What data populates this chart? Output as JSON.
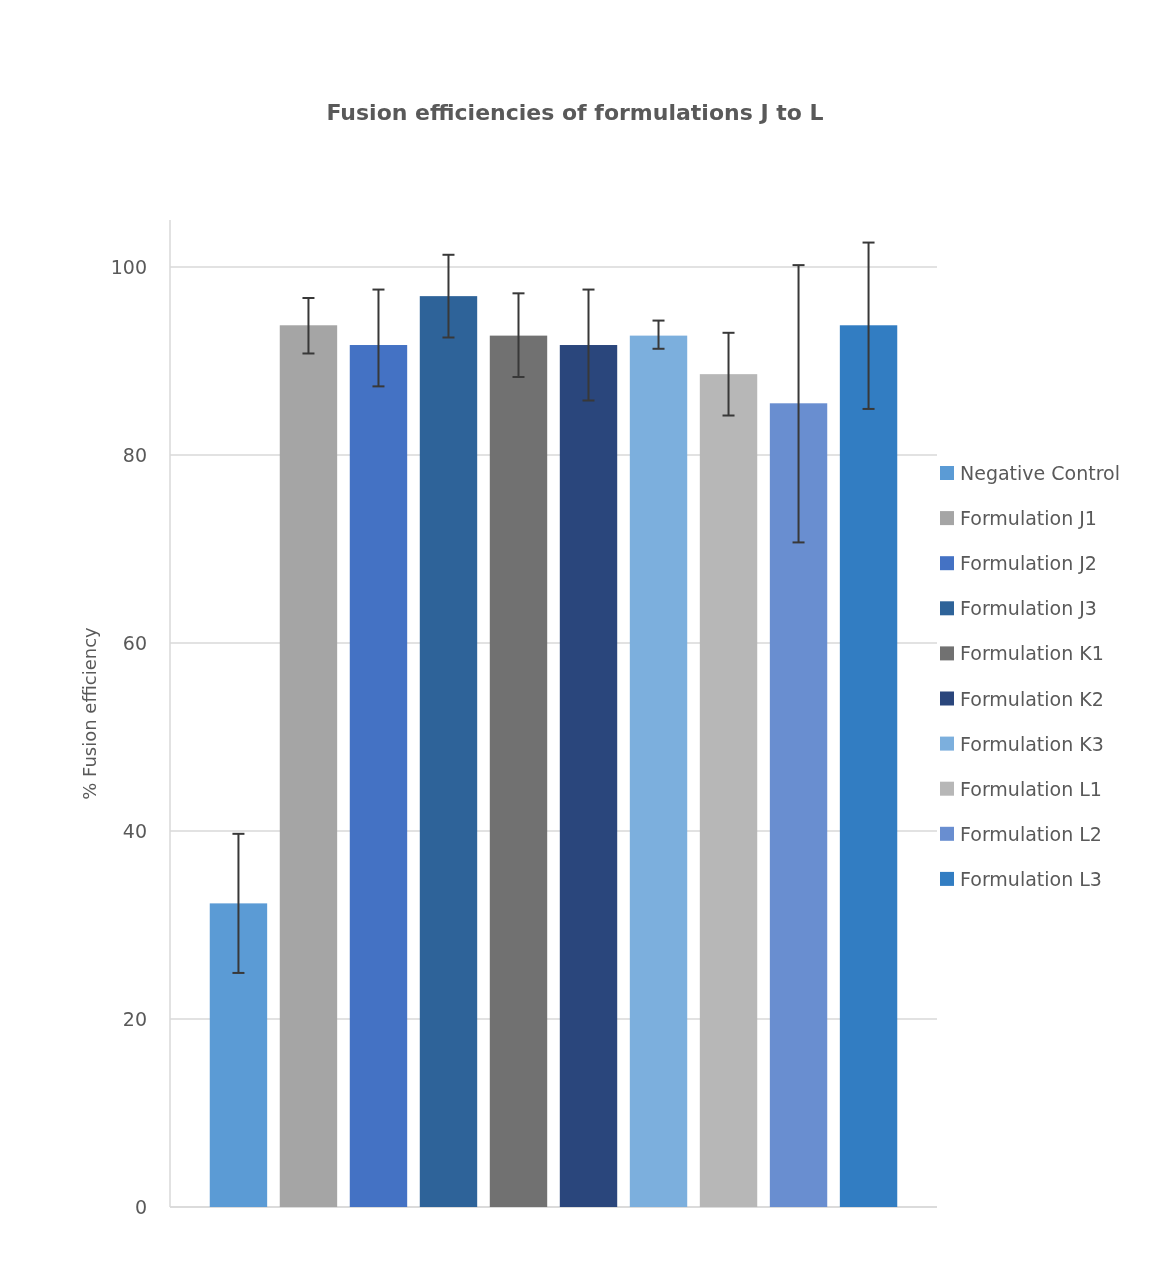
{
  "chart_data": {
    "type": "bar",
    "title": "Fusion efficiencies of formulations J to L",
    "ylabel": "% Fusion efficiency",
    "categories": [
      null
    ],
    "series": [
      {
        "name": "Negative Control",
        "color": "#5b9bd5",
        "values": [
          32.3
        ],
        "errors": [
          [
            24.9,
            39.7
          ]
        ]
      },
      {
        "name": "Formulation J1",
        "color": "#a5a5a5",
        "values": [
          93.8
        ],
        "errors": [
          [
            90.8,
            96.7
          ]
        ]
      },
      {
        "name": "Formulation J2",
        "color": "#4472c4",
        "values": [
          91.7
        ],
        "errors": [
          [
            87.3,
            97.6
          ]
        ]
      },
      {
        "name": "Formulation J3",
        "color": "#2e6399",
        "values": [
          96.9
        ],
        "errors": [
          [
            92.5,
            101.3
          ]
        ]
      },
      {
        "name": "Formulation K1",
        "color": "#717171",
        "values": [
          92.7
        ],
        "errors": [
          [
            88.3,
            97.2
          ]
        ]
      },
      {
        "name": "Formulation K2",
        "color": "#2a467c",
        "values": [
          91.7
        ],
        "errors": [
          [
            85.8,
            97.6
          ]
        ]
      },
      {
        "name": "Formulation K3",
        "color": "#7cafdd",
        "values": [
          92.7
        ],
        "errors": [
          [
            91.3,
            94.3
          ]
        ]
      },
      {
        "name": "Formulation L1",
        "color": "#b7b7b7",
        "values": [
          88.6
        ],
        "errors": [
          [
            84.2,
            93.0
          ]
        ]
      },
      {
        "name": "Formulation L2",
        "color": "#698ed0",
        "values": [
          85.5
        ],
        "errors": [
          [
            70.7,
            100.2
          ]
        ]
      },
      {
        "name": "Formulation L3",
        "color": "#327dc2",
        "values": [
          93.8
        ],
        "errors": [
          [
            84.9,
            102.6
          ]
        ]
      }
    ],
    "ylim": [
      0,
      105
    ],
    "yticks": [
      0,
      20,
      40,
      60,
      80,
      100
    ],
    "grid": "y",
    "legend": "right"
  }
}
